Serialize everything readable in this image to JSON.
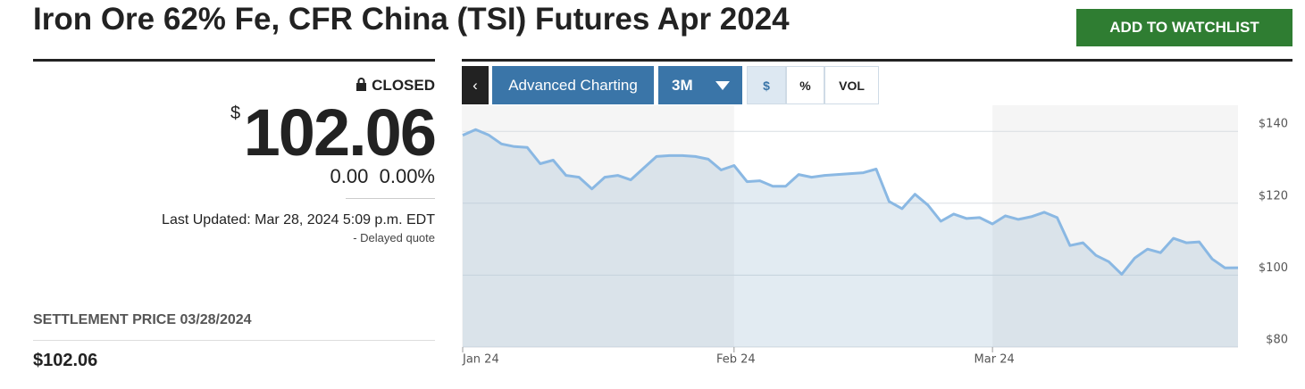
{
  "header": {
    "title": "Iron Ore 62% Fe, CFR China (TSI) Futures Apr 2024",
    "button": "ADD TO WATCHLIST"
  },
  "quote": {
    "status": "CLOSED",
    "currency": "$",
    "price": "102.06",
    "change": "0.00",
    "change_pct": "0.00%",
    "last_updated": "Last Updated: Mar 28, 2024 5:09 p.m. EDT",
    "delay": "-  Delayed quote",
    "settlement_label": "SETTLEMENT PRICE 03/28/2024",
    "settlement_value": "$102.06"
  },
  "toolbar": {
    "advanced": "Advanced Charting",
    "range": "3M",
    "units": [
      "$",
      "%",
      "VOL"
    ]
  },
  "chart_data": {
    "type": "area",
    "color": "#8ab8e3",
    "categories": [
      "Jan 24",
      null,
      null,
      null,
      null,
      null,
      null,
      null,
      null,
      null,
      null,
      null,
      null,
      null,
      null,
      null,
      null,
      null,
      null,
      null,
      null,
      "Feb 24",
      null,
      null,
      null,
      null,
      null,
      null,
      null,
      null,
      null,
      null,
      null,
      null,
      null,
      null,
      null,
      null,
      null,
      null,
      null,
      "Mar 24",
      null,
      null,
      null,
      null,
      null,
      null,
      null,
      null,
      null,
      null,
      null,
      null,
      null,
      null,
      null,
      null,
      null,
      null,
      null
    ],
    "values": [
      138.9,
      140.5,
      139,
      136.5,
      135.75,
      135.5,
      131,
      132,
      127.75,
      127.25,
      124,
      127.25,
      127.75,
      126.5,
      129.75,
      133,
      133.25,
      133.25,
      133,
      132.25,
      129.25,
      130.5,
      126,
      126.25,
      124.75,
      124.75,
      128,
      127.25,
      127.75,
      128,
      128.25,
      128.5,
      129.5,
      120.5,
      118.5,
      122.5,
      119.5,
      115,
      117,
      115.75,
      116,
      114.25,
      116.5,
      115.5,
      116.25,
      117.5,
      116,
      108.25,
      109,
      105.5,
      103.75,
      100.25,
      104.75,
      107.25,
      106.25,
      110.25,
      109,
      109.25,
      104.5,
      102,
      102.06
    ],
    "ylim": [
      80,
      147.25
    ],
    "yticks": [
      {
        "value": 80,
        "label": "$80"
      },
      {
        "value": 100,
        "label": "$100"
      },
      {
        "value": 120,
        "label": "$120"
      },
      {
        "value": 140,
        "label": "$140"
      }
    ],
    "grid": true
  }
}
